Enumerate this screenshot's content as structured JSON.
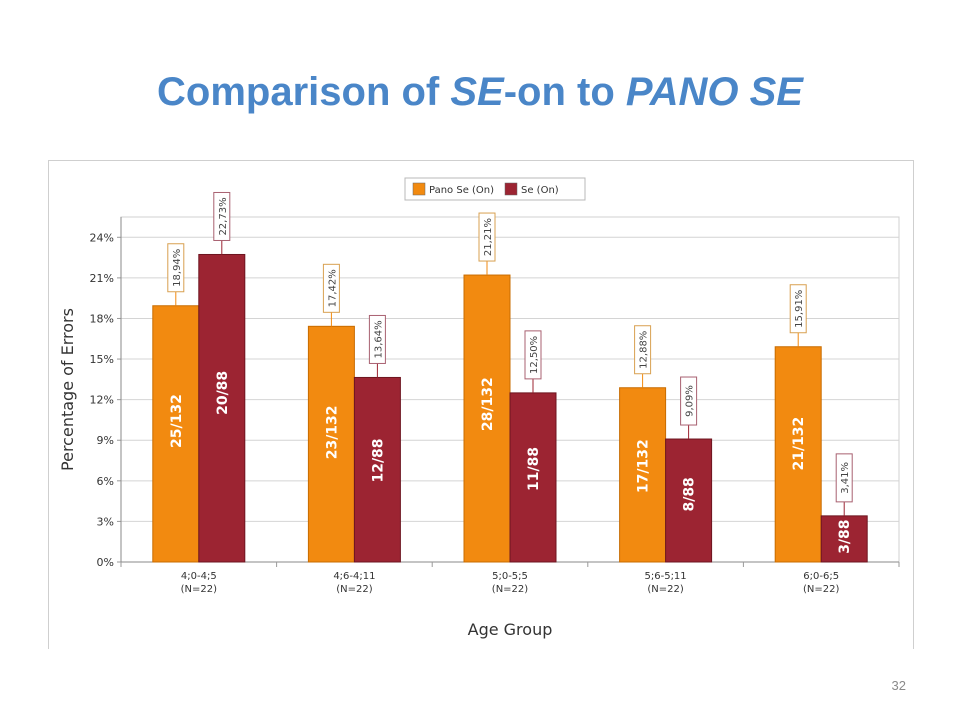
{
  "slide": {
    "title_parts": [
      "Comparison of ",
      "SE",
      "-on to ",
      "PANO SE"
    ],
    "page_number": "32"
  },
  "colors": {
    "title": "#4a86c8",
    "pano": "#f28a10",
    "se": "#9c2432"
  },
  "chart_data": {
    "type": "bar",
    "categories": [
      [
        "4;0-4;5",
        "(N=22)"
      ],
      [
        "4;6-4;11",
        "(N=22)"
      ],
      [
        "5;0-5;5",
        "(N=22)"
      ],
      [
        "5;6-5;11",
        "(N=22)"
      ],
      [
        "6;0-6;5",
        "(N=22)"
      ]
    ],
    "series": [
      {
        "name": "Pano Se (On)",
        "color": "#f28a10",
        "values": [
          18.94,
          17.42,
          21.21,
          12.88,
          15.91
        ],
        "value_labels": [
          "18,94%",
          "17,42%",
          "21,21%",
          "12,88%",
          "15,91%"
        ],
        "count_labels": [
          "25/132",
          "23/132",
          "28/132",
          "17/132",
          "21/132"
        ]
      },
      {
        "name": "Se (On)",
        "color": "#9c2432",
        "values": [
          22.73,
          13.64,
          12.5,
          9.09,
          3.41
        ],
        "value_labels": [
          "22,73%",
          "13,64%",
          "12,50%",
          "9,09%",
          "3,41%"
        ],
        "count_labels": [
          "20/88",
          "12/88",
          "11/88",
          "8/88",
          "3/88"
        ]
      }
    ],
    "yticks": [
      "0%",
      "3%",
      "6%",
      "9%",
      "12%",
      "15%",
      "18%",
      "21%",
      "24%"
    ],
    "ylim": [
      0,
      25.5
    ],
    "xlabel": "Age Group",
    "ylabel": "Percentage of Errors",
    "grid": true,
    "legend": "top-center"
  }
}
